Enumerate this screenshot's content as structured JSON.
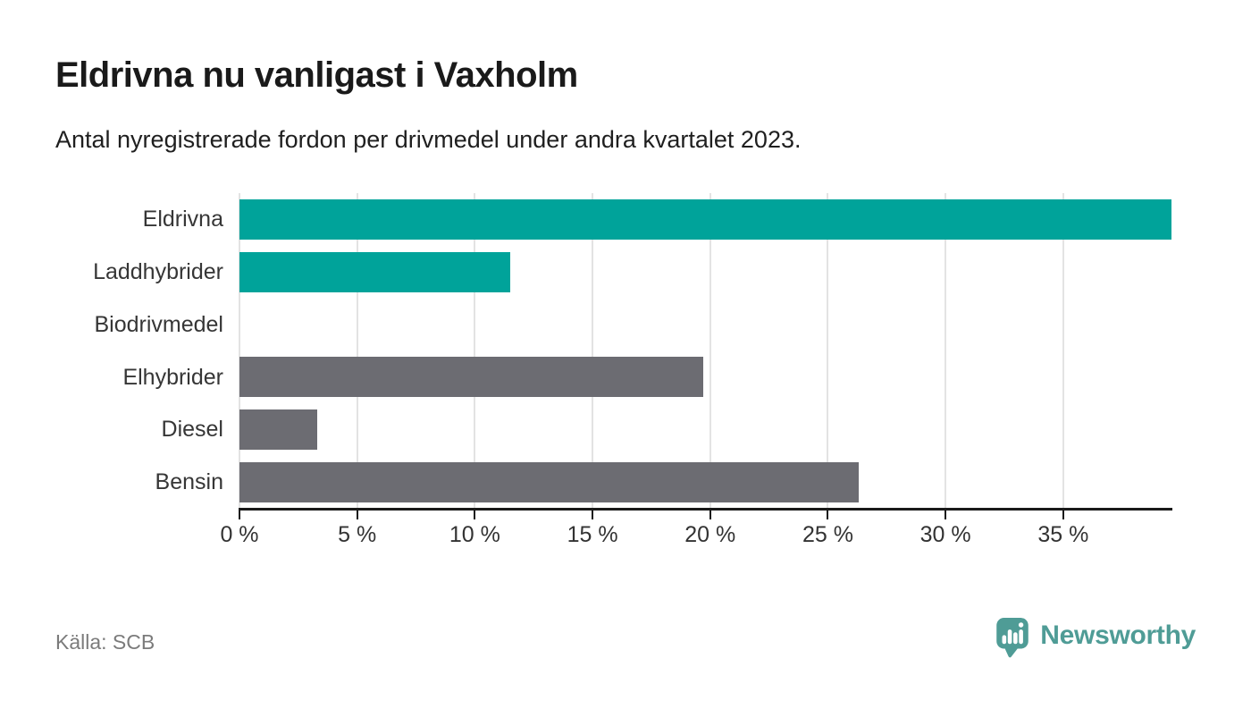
{
  "title": "Eldrivna nu vanligast i Vaxholm",
  "subtitle": "Antal nyregistrerade fordon per drivmedel under andra kvartalet 2023.",
  "source": "Källa: SCB",
  "brand": {
    "name": "Newsworthy",
    "color": "#4F9C96"
  },
  "colors": {
    "highlight": "#00A39A",
    "neutral": "#6C6C72",
    "gridline": "#E3E3E3",
    "axis": "#1A1A1A"
  },
  "chart_data": {
    "type": "bar",
    "orientation": "horizontal",
    "title": "Eldrivna nu vanligast i Vaxholm",
    "subtitle": "Antal nyregistrerade fordon per drivmedel under andra kvartalet 2023.",
    "categories": [
      "Eldrivna",
      "Laddhybrider",
      "Biodrivmedel",
      "Elhybrider",
      "Diesel",
      "Bensin"
    ],
    "values": [
      39.6,
      11.5,
      0,
      19.7,
      3.3,
      26.3
    ],
    "unit": "%",
    "bar_colors": [
      "#00A39A",
      "#00A39A",
      "#6C6C72",
      "#6C6C72",
      "#6C6C72",
      "#6C6C72"
    ],
    "xlim": [
      0,
      39.6
    ],
    "x_ticks": [
      0,
      5,
      10,
      15,
      20,
      25,
      30,
      35
    ],
    "x_tick_labels": [
      "0 %",
      "5 %",
      "10 %",
      "15 %",
      "20 %",
      "25 %",
      "30 %",
      "35 %"
    ],
    "grid": true,
    "legend": "none",
    "source": "Källa: SCB"
  }
}
